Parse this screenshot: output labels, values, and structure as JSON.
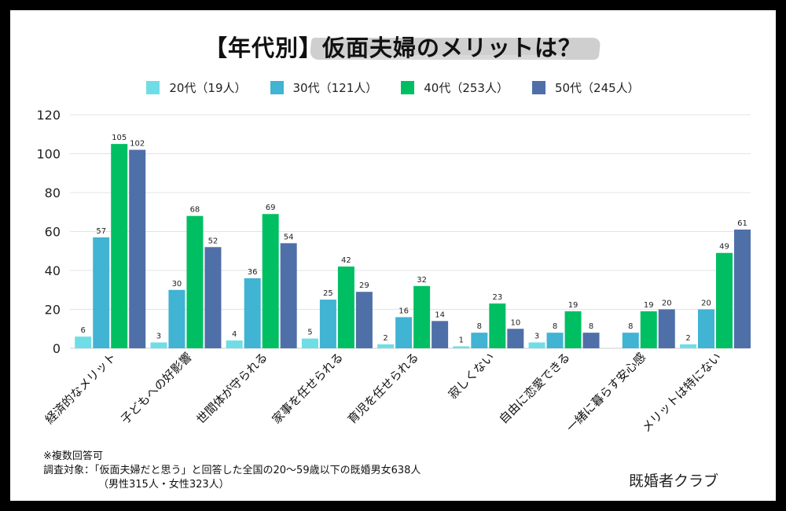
{
  "title": {
    "prefix": "【年代別】",
    "main": "仮面夫婦のメリットは？"
  },
  "colors": {
    "s20": "#6fdde6",
    "s30": "#41b3d3",
    "s40": "#00bf63",
    "s50": "#4f6fa8",
    "grid": "#dddddd",
    "highlight": "#cfcfcf"
  },
  "legend": [
    {
      "label": "20代（19人）"
    },
    {
      "label": "30代（121人）"
    },
    {
      "label": "40代（253人）"
    },
    {
      "label": "50代（245人）"
    }
  ],
  "chart_data": {
    "type": "bar",
    "title": "【年代別】仮面夫婦のメリットは？",
    "xlabel": "",
    "ylabel": "",
    "ylim": [
      0,
      120
    ],
    "yticks": [
      0,
      20,
      40,
      60,
      80,
      100,
      120
    ],
    "grid": true,
    "legend_position": "top",
    "categories": [
      "経済的なメリット",
      "子どもへの好影響",
      "世間体が守られる",
      "家事を任せられる",
      "育児を任せられる",
      "寂しくない",
      "自由に恋愛できる",
      "一緒に暮らす安心感",
      "メリットは特にない"
    ],
    "series": [
      {
        "name": "20代（19人）",
        "color": "#6fdde6",
        "values": [
          6,
          3,
          4,
          5,
          2,
          1,
          3,
          0,
          2
        ]
      },
      {
        "name": "30代（121人）",
        "color": "#41b3d3",
        "values": [
          57,
          30,
          36,
          25,
          16,
          8,
          8,
          8,
          20
        ]
      },
      {
        "name": "40代（253人）",
        "color": "#00bf63",
        "values": [
          105,
          68,
          69,
          42,
          32,
          23,
          19,
          19,
          49
        ]
      },
      {
        "name": "50代（245人）",
        "color": "#4f6fa8",
        "values": [
          102,
          52,
          54,
          29,
          14,
          10,
          8,
          20,
          61
        ]
      }
    ]
  },
  "notes": {
    "line1": "※複数回答可",
    "line2": "調査対象：「仮面夫婦だと思う」と回答した全国の20〜59歳以下の既婚男女638人",
    "line3": "（男性315人・女性323人）"
  },
  "brand": "既婚者クラブ"
}
